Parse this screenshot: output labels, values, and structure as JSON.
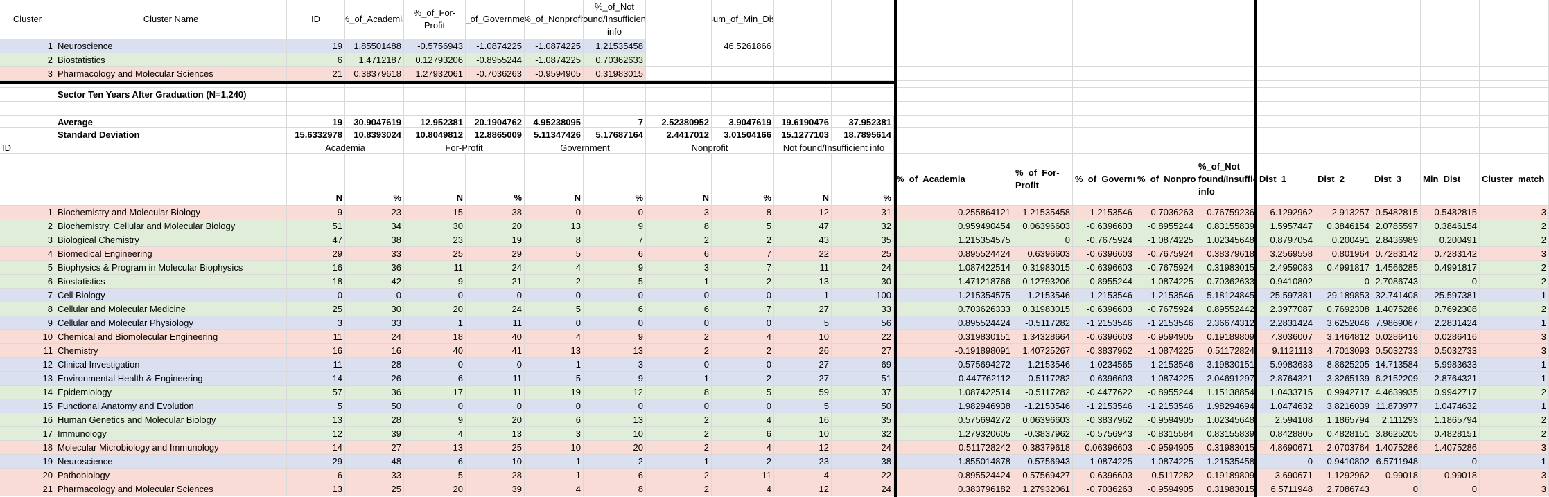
{
  "colors": {
    "1": "#dae0f0",
    "2": "#e0edd8",
    "3": "#f9dcd5"
  },
  "summary": {
    "headers": [
      "Cluster",
      "Cluster Name",
      "ID",
      "%_of_Academia",
      "%_of_For-Profit",
      "%_of_Government",
      "%_of_Nonprofit",
      "%_of_Not found/Insufficient info",
      "",
      "Sum_of_Min_Dist"
    ],
    "rows": [
      {
        "cluster": "1",
        "name": "Neuroscience",
        "id": "19",
        "v": [
          "1.85501488",
          "-0.5756943",
          "-1.0874225",
          "-1.0874225",
          "1.21535458"
        ],
        "sum": "46.5261866",
        "color": "1"
      },
      {
        "cluster": "2",
        "name": "Biostatistics",
        "id": "6",
        "v": [
          "1.4712187",
          "0.12793206",
          "-0.8955244",
          "-1.0874225",
          "0.70362633"
        ],
        "sum": "",
        "color": "2"
      },
      {
        "cluster": "3",
        "name": "Pharmacology and Molecular Sciences",
        "id": "21",
        "v": [
          "0.38379618",
          "1.27932061",
          "-0.7036263",
          "-0.9594905",
          "0.31983015"
        ],
        "sum": "",
        "color": "3"
      }
    ]
  },
  "section_title": "Sector Ten Years After Graduation (N=1,240)",
  "average": {
    "label": "Average",
    "values": [
      "19",
      "30.9047619",
      "12.952381",
      "20.1904762",
      "4.95238095",
      "7",
      "2.52380952",
      "3.9047619",
      "19.6190476",
      "37.952381"
    ]
  },
  "stdev": {
    "label": "Standard Deviation",
    "values": [
      "15.6332978",
      "10.8393024",
      "10.8049812",
      "12.8865009",
      "5.11347426",
      "5.17687164",
      "2.4417012",
      "3.01504166",
      "15.1277103",
      "18.7895614"
    ]
  },
  "groups": {
    "id": "ID",
    "academia": "Academia",
    "forprofit": "For-Profit",
    "government": "Government",
    "nonprofit": "Nonprofit",
    "notfound": "Not found/Insufficient info"
  },
  "subheaders": {
    "n": "N",
    "pct": "%"
  },
  "zheaders": [
    "%_of_Academia",
    "%_of_For-Profit",
    "%_of_Government",
    "%_of_Nonprofit",
    "%_of_Not found/Insufficient info",
    "Dist_1",
    "Dist_2",
    "Dist_3",
    "Min_Dist",
    "Cluster_match"
  ],
  "rows": [
    {
      "id": "1",
      "name": "Biochemistry and Molecular Biology",
      "raw": [
        "9",
        "23",
        "15",
        "38",
        "0",
        "0",
        "3",
        "8",
        "12",
        "31"
      ],
      "z": [
        "0.255864121",
        "1.21535458",
        "-1.2153546",
        "-0.7036263",
        "0.76759236"
      ],
      "d": [
        "6.1292962",
        "2.913257",
        "0.5482815",
        "0.5482815",
        "3"
      ],
      "color": "3"
    },
    {
      "id": "2",
      "name": "Biochemistry, Cellular and Molecular Biology",
      "raw": [
        "51",
        "34",
        "30",
        "20",
        "13",
        "9",
        "8",
        "5",
        "47",
        "32"
      ],
      "z": [
        "0.959490454",
        "0.06396603",
        "-0.6396603",
        "-0.8955244",
        "0.83155839"
      ],
      "d": [
        "1.5957447",
        "0.3846154",
        "2.0785597",
        "0.3846154",
        "2"
      ],
      "color": "2"
    },
    {
      "id": "3",
      "name": "Biological Chemistry",
      "raw": [
        "47",
        "38",
        "23",
        "19",
        "8",
        "7",
        "2",
        "2",
        "43",
        "35"
      ],
      "z": [
        "1.215354575",
        "0",
        "-0.7675924",
        "-1.0874225",
        "1.02345648"
      ],
      "d": [
        "0.8797054",
        "0.200491",
        "2.8436989",
        "0.200491",
        "2"
      ],
      "color": "2"
    },
    {
      "id": "4",
      "name": "Biomedical Engineering",
      "raw": [
        "29",
        "33",
        "25",
        "29",
        "5",
        "6",
        "6",
        "7",
        "22",
        "25"
      ],
      "z": [
        "0.895524424",
        "0.6396603",
        "-0.6396603",
        "-0.7675924",
        "0.38379618"
      ],
      "d": [
        "3.2569558",
        "0.801964",
        "0.7283142",
        "0.7283142",
        "3"
      ],
      "color": "3"
    },
    {
      "id": "5",
      "name": "Biophysics & Program in Molecular Biophysics",
      "raw": [
        "16",
        "36",
        "11",
        "24",
        "4",
        "9",
        "3",
        "7",
        "11",
        "24"
      ],
      "z": [
        "1.087422514",
        "0.31983015",
        "-0.6396603",
        "-0.7675924",
        "0.31983015"
      ],
      "d": [
        "2.4959083",
        "0.4991817",
        "1.4566285",
        "0.4991817",
        "2"
      ],
      "color": "2"
    },
    {
      "id": "6",
      "name": "Biostatistics",
      "raw": [
        "18",
        "42",
        "9",
        "21",
        "2",
        "5",
        "1",
        "2",
        "13",
        "30"
      ],
      "z": [
        "1.471218766",
        "0.12793206",
        "-0.8955244",
        "-1.0874225",
        "0.70362633"
      ],
      "d": [
        "0.9410802",
        "0",
        "2.7086743",
        "0",
        "2"
      ],
      "color": "2"
    },
    {
      "id": "7",
      "name": "Cell Biology",
      "raw": [
        "0",
        "0",
        "0",
        "0",
        "0",
        "0",
        "0",
        "0",
        "1",
        "100"
      ],
      "z": [
        "-1.215354575",
        "-1.2153546",
        "-1.2153546",
        "-1.2153546",
        "5.18124845"
      ],
      "d": [
        "25.597381",
        "29.189853",
        "32.741408",
        "25.597381",
        "1"
      ],
      "color": "1"
    },
    {
      "id": "8",
      "name": "Cellular and Molecular Medicine",
      "raw": [
        "25",
        "30",
        "20",
        "24",
        "5",
        "6",
        "6",
        "7",
        "27",
        "33"
      ],
      "z": [
        "0.703626333",
        "0.31983015",
        "-0.6396603",
        "-0.7675924",
        "0.89552442"
      ],
      "d": [
        "2.3977087",
        "0.7692308",
        "1.4075286",
        "0.7692308",
        "2"
      ],
      "color": "2"
    },
    {
      "id": "9",
      "name": "Cellular and Molecular Physiology",
      "raw": [
        "3",
        "33",
        "1",
        "11",
        "0",
        "0",
        "0",
        "0",
        "5",
        "56"
      ],
      "z": [
        "0.895524424",
        "-0.5117282",
        "-1.2153546",
        "-1.2153546",
        "2.36674312"
      ],
      "d": [
        "2.2831424",
        "3.6252046",
        "7.9869067",
        "2.2831424",
        "1"
      ],
      "color": "1"
    },
    {
      "id": "10",
      "name": "Chemical and Biomolecular Engineering",
      "raw": [
        "11",
        "24",
        "18",
        "40",
        "4",
        "9",
        "2",
        "4",
        "10",
        "22"
      ],
      "z": [
        "0.319830151",
        "1.34328664",
        "-0.6396603",
        "-0.9594905",
        "0.19189809"
      ],
      "d": [
        "7.3036007",
        "3.1464812",
        "0.0286416",
        "0.0286416",
        "3"
      ],
      "color": "3"
    },
    {
      "id": "11",
      "name": "Chemistry",
      "raw": [
        "16",
        "16",
        "40",
        "41",
        "13",
        "13",
        "2",
        "2",
        "26",
        "27"
      ],
      "z": [
        "-0.191898091",
        "1.40725267",
        "-0.3837962",
        "-1.0874225",
        "0.51172824"
      ],
      "d": [
        "9.1121113",
        "4.7013093",
        "0.5032733",
        "0.5032733",
        "3"
      ],
      "color": "3"
    },
    {
      "id": "12",
      "name": "Clinical Investigation",
      "raw": [
        "11",
        "28",
        "0",
        "0",
        "1",
        "3",
        "0",
        "0",
        "27",
        "69"
      ],
      "z": [
        "0.575694272",
        "-1.2153546",
        "-1.0234565",
        "-1.2153546",
        "3.19830151"
      ],
      "d": [
        "5.9983633",
        "8.8625205",
        "14.713584",
        "5.9983633",
        "1"
      ],
      "color": "1"
    },
    {
      "id": "13",
      "name": "Environmental Health & Engineering",
      "raw": [
        "14",
        "26",
        "6",
        "11",
        "5",
        "9",
        "1",
        "2",
        "27",
        "51"
      ],
      "z": [
        "0.447762112",
        "-0.5117282",
        "-0.6396603",
        "-1.0874225",
        "2.04691297"
      ],
      "d": [
        "2.8764321",
        "3.3265139",
        "6.2152209",
        "2.8764321",
        "1"
      ],
      "color": "1"
    },
    {
      "id": "14",
      "name": "Epidemiology",
      "raw": [
        "57",
        "36",
        "17",
        "11",
        "19",
        "12",
        "8",
        "5",
        "59",
        "37"
      ],
      "z": [
        "1.087422514",
        "-0.5117282",
        "-0.4477622",
        "-0.8955244",
        "1.15138854"
      ],
      "d": [
        "1.0433715",
        "0.9942717",
        "4.4639935",
        "0.9942717",
        "2"
      ],
      "color": "2"
    },
    {
      "id": "15",
      "name": "Functional Anatomy and Evolution",
      "raw": [
        "5",
        "50",
        "0",
        "0",
        "0",
        "0",
        "0",
        "0",
        "5",
        "50"
      ],
      "z": [
        "1.982946938",
        "-1.2153546",
        "-1.2153546",
        "-1.2153546",
        "1.98294694"
      ],
      "d": [
        "1.0474632",
        "3.8216039",
        "11.873977",
        "1.0474632",
        "1"
      ],
      "color": "1"
    },
    {
      "id": "16",
      "name": "Human Genetics and Molecular Biology",
      "raw": [
        "13",
        "28",
        "9",
        "20",
        "6",
        "13",
        "2",
        "4",
        "16",
        "35"
      ],
      "z": [
        "0.575694272",
        "0.06396603",
        "-0.3837962",
        "-0.9594905",
        "1.02345648"
      ],
      "d": [
        "2.594108",
        "1.1865794",
        "2.111293",
        "1.1865794",
        "2"
      ],
      "color": "2"
    },
    {
      "id": "17",
      "name": "Immunology",
      "raw": [
        "12",
        "39",
        "4",
        "13",
        "3",
        "10",
        "2",
        "6",
        "10",
        "32"
      ],
      "z": [
        "1.279320605",
        "-0.3837962",
        "-0.5756943",
        "-0.8315584",
        "0.83155839"
      ],
      "d": [
        "0.8428805",
        "0.4828151",
        "3.8625205",
        "0.4828151",
        "2"
      ],
      "color": "2"
    },
    {
      "id": "18",
      "name": "Molecular Microbiology and Immunology",
      "raw": [
        "14",
        "27",
        "13",
        "25",
        "10",
        "20",
        "2",
        "4",
        "12",
        "24"
      ],
      "z": [
        "0.511728242",
        "0.38379618",
        "0.06396603",
        "-0.9594905",
        "0.31983015"
      ],
      "d": [
        "4.8690671",
        "2.0703764",
        "1.4075286",
        "1.4075286",
        "3"
      ],
      "color": "3"
    },
    {
      "id": "19",
      "name": "Neuroscience",
      "raw": [
        "29",
        "48",
        "6",
        "10",
        "1",
        "2",
        "1",
        "2",
        "23",
        "38"
      ],
      "z": [
        "1.855014878",
        "-0.5756943",
        "-1.0874225",
        "-1.0874225",
        "1.21535458"
      ],
      "d": [
        "0",
        "0.9410802",
        "6.5711948",
        "0",
        "1"
      ],
      "color": "1"
    },
    {
      "id": "20",
      "name": "Pathobiology",
      "raw": [
        "6",
        "33",
        "5",
        "28",
        "1",
        "6",
        "2",
        "11",
        "4",
        "22"
      ],
      "z": [
        "0.895524424",
        "0.57569427",
        "-0.6396603",
        "-0.5117282",
        "0.19189809"
      ],
      "d": [
        "3.690671",
        "1.1292962",
        "0.99018",
        "0.99018",
        "3"
      ],
      "color": "3"
    },
    {
      "id": "21",
      "name": "Pharmacology and Molecular Sciences",
      "raw": [
        "13",
        "25",
        "20",
        "39",
        "4",
        "8",
        "2",
        "4",
        "12",
        "24"
      ],
      "z": [
        "0.383796182",
        "1.27932061",
        "-0.7036263",
        "-0.9594905",
        "0.31983015"
      ],
      "d": [
        "6.5711948",
        "2.7086743",
        "0",
        "0",
        "3"
      ],
      "color": "3"
    }
  ]
}
